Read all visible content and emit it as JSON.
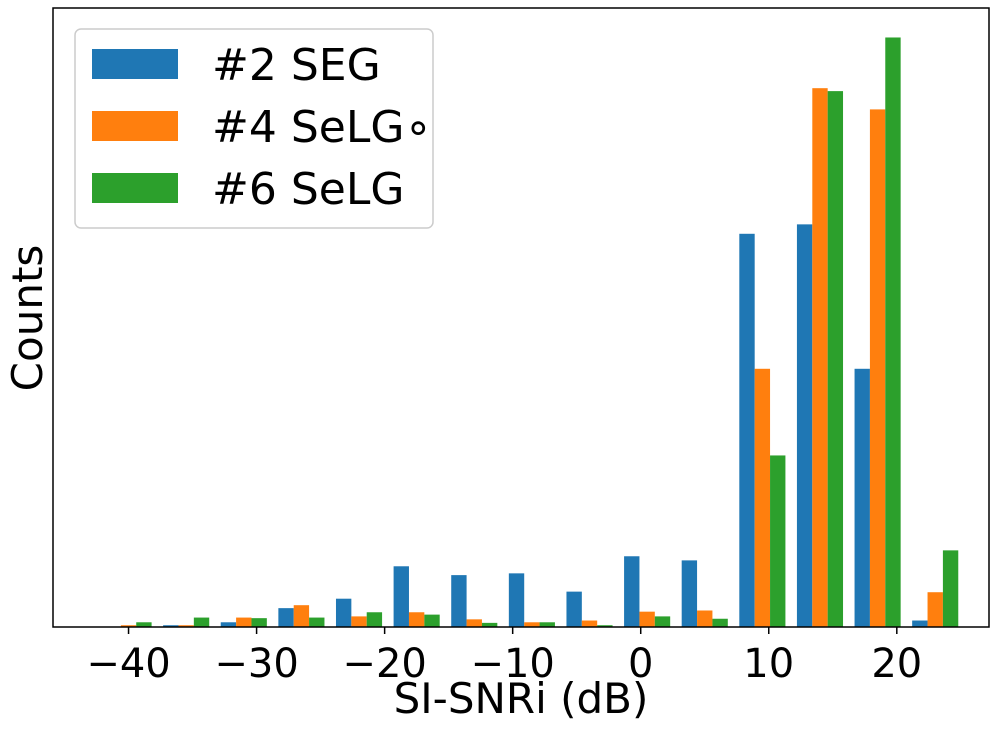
{
  "chart_data": {
    "type": "bar",
    "title": "",
    "xlabel": "SI-SNRi (dB)",
    "ylabel": "Counts",
    "xlim": [
      -45.9,
      27.2
    ],
    "ylim": [
      0,
      105
    ],
    "x_ticks": [
      -40,
      -30,
      -20,
      -10,
      0,
      10,
      20
    ],
    "x_tick_labels": [
      "−40",
      "−30",
      "−20",
      "−10",
      "0",
      "10",
      "20"
    ],
    "bin_centers": [
      -40,
      -35.5,
      -31,
      -26.5,
      -22,
      -17.5,
      -13,
      -8.5,
      -4,
      0.5,
      5,
      9.5,
      14,
      18.5,
      23
    ],
    "bar_width": 1.2,
    "series": [
      {
        "name": "#2 SEG",
        "color": "#1f77b4",
        "values": [
          0,
          0.3,
          0.8,
          3.2,
          4.8,
          10.3,
          8.8,
          9.1,
          6,
          12,
          11.3,
          66.7,
          68.3,
          43.8,
          1.1
        ]
      },
      {
        "name": "#4 SeLG∘",
        "color": "#ff7f0e",
        "values": [
          0.3,
          0.3,
          1.6,
          3.7,
          1.8,
          2.5,
          1.3,
          0.8,
          1.1,
          2.6,
          2.8,
          43.8,
          91.4,
          87.8,
          5.9
        ]
      },
      {
        "name": "#6 SeLG",
        "color": "#2ca02c",
        "values": [
          0.8,
          1.6,
          1.5,
          1.6,
          2.5,
          2.1,
          0.7,
          0.8,
          0.3,
          1.8,
          1.4,
          29.1,
          90.9,
          100,
          13
        ]
      }
    ],
    "legend_position": "top-left",
    "grid": false
  }
}
